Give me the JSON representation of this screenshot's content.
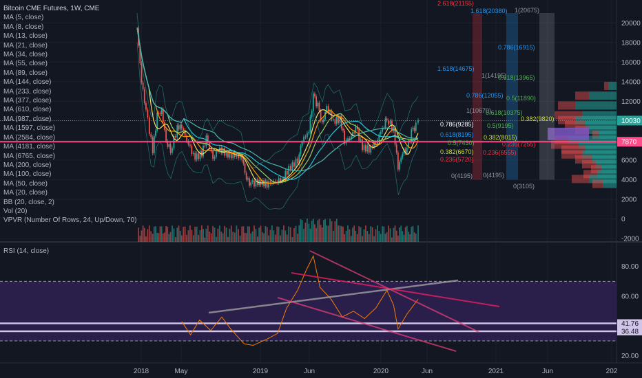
{
  "header": {
    "title": "Bitcoin CME Futures, 1W, CME",
    "indicators": [
      "MA (5, close)",
      "MA (8, close)",
      "MA (13, close)",
      "MA (21, close)",
      "MA (34, close)",
      "MA (55, close)",
      "MA (89, close)",
      "MA (144, close)",
      "MA (233, close)",
      "MA (377, close)",
      "MA (610, close)",
      "MA (987, close)",
      "MA (1597, close)",
      "MA (2584, close)",
      "MA (4181, close)",
      "MA (6765, close)",
      "MA (200, close)",
      "MA (100, close)",
      "MA (50, close)",
      "MA (20, close)",
      "BB (20, close, 2)",
      "Vol (20)",
      "VPVR (Number Of Rows, 24, Up/Down, 70)"
    ]
  },
  "rsi_title": "RSI (14, close)",
  "colors": {
    "background": "#131722",
    "up": "#26a69a",
    "down": "#ef5350",
    "price_badge": "#26a69a",
    "pink_line": "#ff4d8a",
    "rsi_band": "#2a1f4a",
    "rsi_line": "#f57c00"
  },
  "chart_data": [
    {
      "type": "candlestick",
      "title": "Bitcoin CME Futures, 1W, CME",
      "x_ticks": [
        "2018",
        "May",
        "2019",
        "Jun",
        "2020",
        "Jun",
        "2021",
        "Jun",
        "202"
      ],
      "y_ticks": [
        20000,
        18000,
        16000,
        14000,
        12000,
        10000,
        8000,
        6000,
        4000,
        2000,
        0,
        -2000
      ],
      "ylim": [
        -2000,
        21000
      ],
      "last_price_label": "10030",
      "level_label": "7870",
      "price_path": [
        [
          "2017-12-18",
          19500
        ],
        [
          "2018-01-01",
          14000
        ],
        [
          "2018-01-15",
          11000
        ],
        [
          "2018-02-05",
          7000
        ],
        [
          "2018-02-19",
          10500
        ],
        [
          "2018-03-05",
          11000
        ],
        [
          "2018-03-19",
          8000
        ],
        [
          "2018-04-02",
          7000
        ],
        [
          "2018-04-23",
          9200
        ],
        [
          "2018-05-07",
          9500
        ],
        [
          "2018-05-28",
          7500
        ],
        [
          "2018-06-18",
          6200
        ],
        [
          "2018-07-09",
          6700
        ],
        [
          "2018-07-23",
          8200
        ],
        [
          "2018-08-13",
          6300
        ],
        [
          "2018-09-03",
          7200
        ],
        [
          "2018-09-24",
          6600
        ],
        [
          "2018-10-15",
          6500
        ],
        [
          "2018-11-12",
          6300
        ],
        [
          "2018-11-26",
          4000
        ],
        [
          "2018-12-10",
          3500
        ],
        [
          "2018-12-31",
          3800
        ],
        [
          "2019-02-04",
          3500
        ],
        [
          "2019-02-25",
          3900
        ],
        [
          "2019-03-18",
          4000
        ],
        [
          "2019-04-08",
          5100
        ],
        [
          "2019-05-06",
          6000
        ],
        [
          "2019-05-20",
          8000
        ],
        [
          "2019-06-10",
          8900
        ],
        [
          "2019-06-24",
          12500
        ],
        [
          "2019-07-08",
          11500
        ],
        [
          "2019-07-22",
          9600
        ],
        [
          "2019-08-05",
          11500
        ],
        [
          "2019-08-26",
          10000
        ],
        [
          "2019-09-16",
          10200
        ],
        [
          "2019-09-30",
          8000
        ],
        [
          "2019-10-21",
          8300
        ],
        [
          "2019-11-04",
          9300
        ],
        [
          "2019-11-25",
          7300
        ],
        [
          "2019-12-16",
          7100
        ],
        [
          "2020-01-06",
          7800
        ],
        [
          "2020-01-27",
          9300
        ],
        [
          "2020-02-10",
          10300
        ],
        [
          "2020-03-02",
          9000
        ],
        [
          "2020-03-16",
          5300
        ],
        [
          "2020-03-30",
          6700
        ],
        [
          "2020-04-13",
          7100
        ],
        [
          "2020-04-27",
          8800
        ],
        [
          "2020-05-11",
          9500
        ],
        [
          "2020-05-18",
          10030
        ]
      ],
      "fib_labels": [
        {
          "text": "2.618(21155)",
          "color": "#f23645"
        },
        {
          "text": "1.618(20380)",
          "color": "#2196f3"
        },
        {
          "text": "1(20675)",
          "color": "#9598a1"
        },
        {
          "text": "0.786(16915)",
          "color": "#2196f3"
        },
        {
          "text": "1.618(14675)",
          "color": "#2196f3"
        },
        {
          "text": "1(14195)",
          "color": "#9598a1"
        },
        {
          "text": "0.618(13965)",
          "color": "#4caf50"
        },
        {
          "text": "0.786(12055)",
          "color": "#2196f3"
        },
        {
          "text": "0.5(11890)",
          "color": "#4caf50"
        },
        {
          "text": "1(10670)",
          "color": "#9598a1"
        },
        {
          "text": "0.618(10375)",
          "color": "#4caf50"
        },
        {
          "text": "0.382(9820)",
          "color": "#cddc39"
        },
        {
          "text": "0.786(9285)",
          "color": "#ffffff"
        },
        {
          "text": "0.5(9195)",
          "color": "#4caf50"
        },
        {
          "text": "0.618(8195)",
          "color": "#2196f3"
        },
        {
          "text": "0.382(8015)",
          "color": "#cddc39"
        },
        {
          "text": "0.5(7430)",
          "color": "#4caf50"
        },
        {
          "text": "0.236(7255)",
          "color": "#f23645"
        },
        {
          "text": "0.382(6670)",
          "color": "#cddc39"
        },
        {
          "text": "0.236(6555)",
          "color": "#f23645"
        },
        {
          "text": "0.236(5720)",
          "color": "#f23645"
        },
        {
          "text": "0(4195)",
          "color": "#9598a1"
        },
        {
          "text": "0(4195)",
          "color": "#9598a1"
        },
        {
          "text": "0(3105)",
          "color": "#9598a1"
        }
      ]
    },
    {
      "type": "line",
      "title": "RSI (14, close)",
      "y_ticks": [
        80.0,
        60.0,
        41.76,
        36.48,
        20.0
      ],
      "ylim": [
        18,
        90
      ],
      "values": [
        [
          "2018-05-07",
          43
        ],
        [
          "2018-06-04",
          34
        ],
        [
          "2018-07-02",
          44
        ],
        [
          "2018-08-06",
          37
        ],
        [
          "2018-09-10",
          46
        ],
        [
          "2018-10-08",
          38
        ],
        [
          "2018-11-19",
          28
        ],
        [
          "2018-12-17",
          27
        ],
        [
          "2019-01-28",
          31
        ],
        [
          "2019-03-04",
          35
        ],
        [
          "2019-04-01",
          52
        ],
        [
          "2019-05-06",
          64
        ],
        [
          "2019-06-03",
          78
        ],
        [
          "2019-06-24",
          87
        ],
        [
          "2019-07-15",
          66
        ],
        [
          "2019-08-19",
          58
        ],
        [
          "2019-09-23",
          46
        ],
        [
          "2019-10-28",
          50
        ],
        [
          "2019-12-02",
          45
        ],
        [
          "2020-01-06",
          52
        ],
        [
          "2020-02-10",
          64
        ],
        [
          "2020-03-02",
          54
        ],
        [
          "2020-03-16",
          38
        ],
        [
          "2020-04-13",
          48
        ],
        [
          "2020-05-18",
          58
        ]
      ]
    }
  ]
}
